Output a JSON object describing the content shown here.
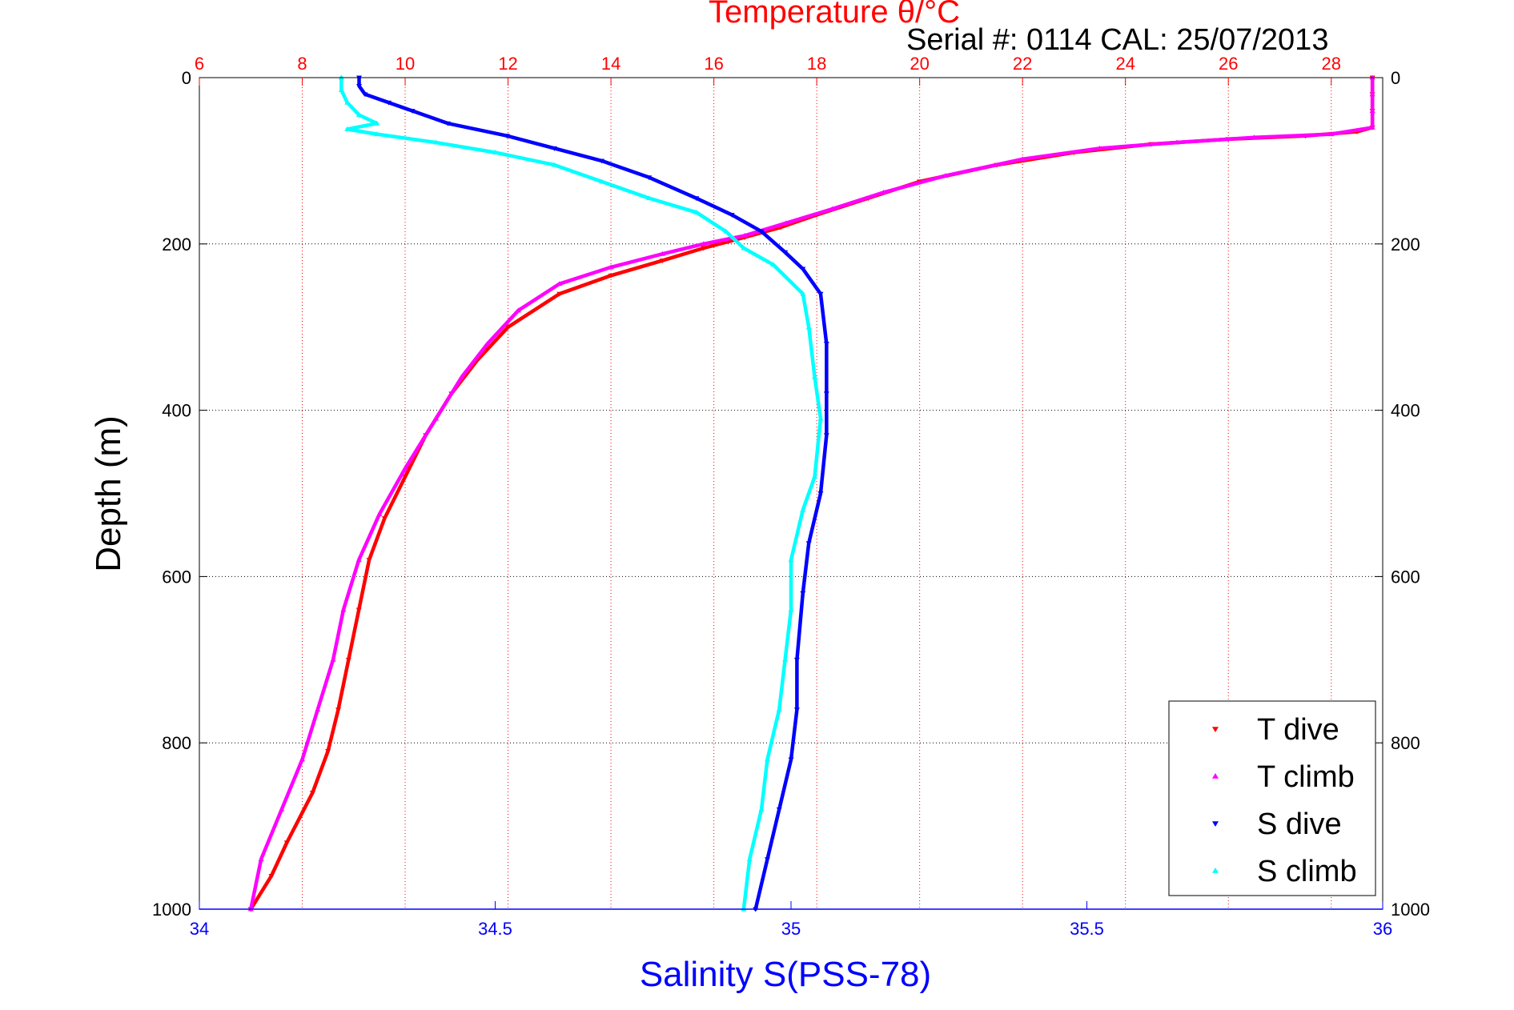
{
  "chart_data": {
    "type": "scatter",
    "title": "Temperature θ/°C",
    "subtitle": "Serial #: 0114  CAL: 25/07/2013",
    "ylabel": "Depth (m)",
    "xlabel_bottom": "Salinity S(PSS-78)",
    "ylim": [
      0,
      1000
    ],
    "y_reversed": true,
    "y_ticks": [
      "0",
      "200",
      "400",
      "600",
      "800",
      "1000"
    ],
    "x_top": {
      "lim": [
        6,
        29
      ],
      "ticks": [
        "6",
        "8",
        "10",
        "12",
        "14",
        "16",
        "18",
        "20",
        "22",
        "24",
        "26",
        "28"
      ],
      "color": "#ff0000"
    },
    "x_bottom": {
      "lim": [
        34,
        36
      ],
      "ticks": [
        "34",
        "34.5",
        "35",
        "35.5",
        "36"
      ],
      "color": "#0000ff"
    },
    "grid": true,
    "legend_position": "bottom-right",
    "series": [
      {
        "name": "T dive",
        "axis": "top",
        "color": "#ff0000",
        "marker": "triangle-down",
        "points": [
          [
            28.8,
            0
          ],
          [
            28.8,
            20
          ],
          [
            28.8,
            40
          ],
          [
            28.8,
            60
          ],
          [
            28.5,
            65
          ],
          [
            27.5,
            70
          ],
          [
            26,
            74
          ],
          [
            24.5,
            80
          ],
          [
            23,
            90
          ],
          [
            21.5,
            105
          ],
          [
            20,
            125
          ],
          [
            19,
            145
          ],
          [
            18,
            165
          ],
          [
            17.3,
            180
          ],
          [
            16.6,
            192
          ],
          [
            15.8,
            205
          ],
          [
            15,
            220
          ],
          [
            14,
            238
          ],
          [
            13,
            260
          ],
          [
            12,
            300
          ],
          [
            11.4,
            340
          ],
          [
            10.9,
            380
          ],
          [
            10.4,
            430
          ],
          [
            10,
            480
          ],
          [
            9.6,
            530
          ],
          [
            9.3,
            580
          ],
          [
            9.1,
            640
          ],
          [
            8.9,
            700
          ],
          [
            8.7,
            760
          ],
          [
            8.5,
            810
          ],
          [
            8.2,
            860
          ],
          [
            7.7,
            920
          ],
          [
            7.4,
            960
          ],
          [
            7,
            1000
          ]
        ]
      },
      {
        "name": "T climb",
        "axis": "top",
        "color": "#ff00ff",
        "marker": "triangle-up",
        "points": [
          [
            28.8,
            0
          ],
          [
            28.8,
            20
          ],
          [
            28.8,
            40
          ],
          [
            28.8,
            60
          ],
          [
            28,
            68
          ],
          [
            26.5,
            72
          ],
          [
            25,
            78
          ],
          [
            23.5,
            85
          ],
          [
            22,
            98
          ],
          [
            20.5,
            118
          ],
          [
            19.3,
            138
          ],
          [
            18.3,
            158
          ],
          [
            17.4,
            175
          ],
          [
            16.6,
            190
          ],
          [
            15.8,
            200
          ],
          [
            15,
            212
          ],
          [
            14,
            228
          ],
          [
            13,
            248
          ],
          [
            12.2,
            280
          ],
          [
            11.6,
            320
          ],
          [
            11.1,
            360
          ],
          [
            10.6,
            410
          ],
          [
            10,
            470
          ],
          [
            9.5,
            525
          ],
          [
            9.1,
            580
          ],
          [
            8.8,
            640
          ],
          [
            8.6,
            700
          ],
          [
            8.3,
            760
          ],
          [
            8,
            820
          ],
          [
            7.6,
            880
          ],
          [
            7.2,
            940
          ],
          [
            7,
            1000
          ]
        ]
      },
      {
        "name": "S dive",
        "axis": "bottom",
        "color": "#0000ff",
        "marker": "triangle-down",
        "points": [
          [
            34.27,
            0
          ],
          [
            34.27,
            10
          ],
          [
            34.28,
            20
          ],
          [
            34.32,
            30
          ],
          [
            34.36,
            40
          ],
          [
            34.42,
            55
          ],
          [
            34.52,
            70
          ],
          [
            34.6,
            85
          ],
          [
            34.68,
            100
          ],
          [
            34.76,
            120
          ],
          [
            34.84,
            145
          ],
          [
            34.9,
            165
          ],
          [
            34.95,
            185
          ],
          [
            34.99,
            210
          ],
          [
            35.02,
            230
          ],
          [
            35.05,
            260
          ],
          [
            35.06,
            320
          ],
          [
            35.06,
            380
          ],
          [
            35.06,
            430
          ],
          [
            35.05,
            500
          ],
          [
            35.03,
            560
          ],
          [
            35.02,
            620
          ],
          [
            35.01,
            700
          ],
          [
            35.01,
            760
          ],
          [
            35,
            820
          ],
          [
            34.98,
            880
          ],
          [
            34.96,
            940
          ],
          [
            34.94,
            1000
          ]
        ]
      },
      {
        "name": "S climb",
        "axis": "bottom",
        "color": "#00ffff",
        "marker": "triangle-up",
        "points": [
          [
            34.24,
            0
          ],
          [
            34.24,
            15
          ],
          [
            34.25,
            30
          ],
          [
            34.27,
            45
          ],
          [
            34.3,
            55
          ],
          [
            34.25,
            62
          ],
          [
            34.3,
            68
          ],
          [
            34.4,
            78
          ],
          [
            34.5,
            90
          ],
          [
            34.6,
            105
          ],
          [
            34.68,
            125
          ],
          [
            34.76,
            145
          ],
          [
            34.84,
            162
          ],
          [
            34.89,
            185
          ],
          [
            34.92,
            205
          ],
          [
            34.97,
            225
          ],
          [
            35.02,
            260
          ],
          [
            35.03,
            300
          ],
          [
            35.04,
            360
          ],
          [
            35.05,
            410
          ],
          [
            35.04,
            480
          ],
          [
            35.02,
            520
          ],
          [
            35,
            580
          ],
          [
            35,
            640
          ],
          [
            34.99,
            700
          ],
          [
            34.98,
            760
          ],
          [
            34.96,
            820
          ],
          [
            34.95,
            880
          ],
          [
            34.93,
            940
          ],
          [
            34.92,
            1000
          ]
        ]
      }
    ]
  }
}
